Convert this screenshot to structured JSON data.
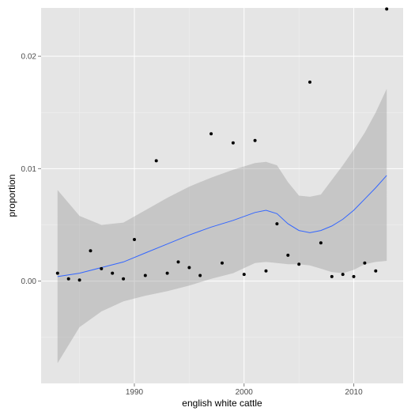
{
  "chart_data": {
    "type": "scatter",
    "title": "",
    "xlabel": "english white cattle",
    "ylabel": "proportion",
    "xlim": [
      1981.5,
      2014.5
    ],
    "ylim": [
      -0.0091,
      0.0243
    ],
    "x_ticks": [
      1990,
      2000,
      2010
    ],
    "x_tick_labels": [
      "1990",
      "2000",
      "2010"
    ],
    "y_ticks": [
      0.0,
      0.01,
      0.02
    ],
    "y_tick_labels": [
      "0.00",
      "0.01",
      "0.02"
    ],
    "grid": true,
    "legend": "none",
    "colors": {
      "panel_background": "#e5e5e5",
      "grid_major": "#ffffff",
      "grid_minor": "#f2f2f2",
      "points": "#000000",
      "smooth_line": "#3366ff",
      "confidence_band": "#999999"
    },
    "points": [
      {
        "x": 1983,
        "y": 0.0007
      },
      {
        "x": 1984,
        "y": 0.0002
      },
      {
        "x": 1985,
        "y": 0.0001
      },
      {
        "x": 1986,
        "y": 0.0027
      },
      {
        "x": 1987,
        "y": 0.0011
      },
      {
        "x": 1988,
        "y": 0.0007
      },
      {
        "x": 1989,
        "y": 0.0002
      },
      {
        "x": 1990,
        "y": 0.0037
      },
      {
        "x": 1991,
        "y": 0.0005
      },
      {
        "x": 1992,
        "y": 0.0107
      },
      {
        "x": 1993,
        "y": 0.0007
      },
      {
        "x": 1994,
        "y": 0.0017
      },
      {
        "x": 1995,
        "y": 0.0012
      },
      {
        "x": 1996,
        "y": 0.0005
      },
      {
        "x": 1997,
        "y": 0.0131
      },
      {
        "x": 1998,
        "y": 0.0016
      },
      {
        "x": 1999,
        "y": 0.0123
      },
      {
        "x": 2000,
        "y": 0.0006
      },
      {
        "x": 2001,
        "y": 0.0125
      },
      {
        "x": 2002,
        "y": 0.0009
      },
      {
        "x": 2003,
        "y": 0.0051
      },
      {
        "x": 2004,
        "y": 0.0023
      },
      {
        "x": 2005,
        "y": 0.0015
      },
      {
        "x": 2006,
        "y": 0.0177
      },
      {
        "x": 2007,
        "y": 0.0034
      },
      {
        "x": 2008,
        "y": 0.0004
      },
      {
        "x": 2009,
        "y": 0.0006
      },
      {
        "x": 2010,
        "y": 0.0004
      },
      {
        "x": 2011,
        "y": 0.0016
      },
      {
        "x": 2012,
        "y": 0.0009
      },
      {
        "x": 2013,
        "y": 0.0242
      }
    ],
    "smooth": {
      "method": "loess",
      "x": [
        1983,
        1985,
        1987,
        1989,
        1991,
        1993,
        1995,
        1997,
        1999,
        2001,
        2002,
        2003,
        2004,
        2005,
        2006,
        2007,
        2008,
        2009,
        2010,
        2011,
        2012,
        2013
      ],
      "y": [
        0.0004,
        0.0007,
        0.0012,
        0.0017,
        0.0025,
        0.0033,
        0.0041,
        0.0048,
        0.0054,
        0.0061,
        0.0063,
        0.006,
        0.0051,
        0.0045,
        0.0043,
        0.0045,
        0.0049,
        0.0055,
        0.0063,
        0.0073,
        0.0083,
        0.0094
      ],
      "ymin": [
        -0.0073,
        -0.0041,
        -0.0027,
        -0.0018,
        -0.0013,
        -0.0009,
        -0.0004,
        0.0002,
        0.0007,
        0.0016,
        0.0017,
        0.0016,
        0.0015,
        0.0015,
        0.0014,
        0.0011,
        0.0008,
        0.0007,
        0.001,
        0.0015,
        0.0017,
        0.0018
      ],
      "ymax": [
        0.0081,
        0.0058,
        0.005,
        0.0052,
        0.0063,
        0.0074,
        0.0084,
        0.0092,
        0.0099,
        0.0105,
        0.0106,
        0.0103,
        0.0088,
        0.0076,
        0.0075,
        0.0077,
        0.009,
        0.0103,
        0.0117,
        0.0132,
        0.015,
        0.0171
      ]
    }
  }
}
